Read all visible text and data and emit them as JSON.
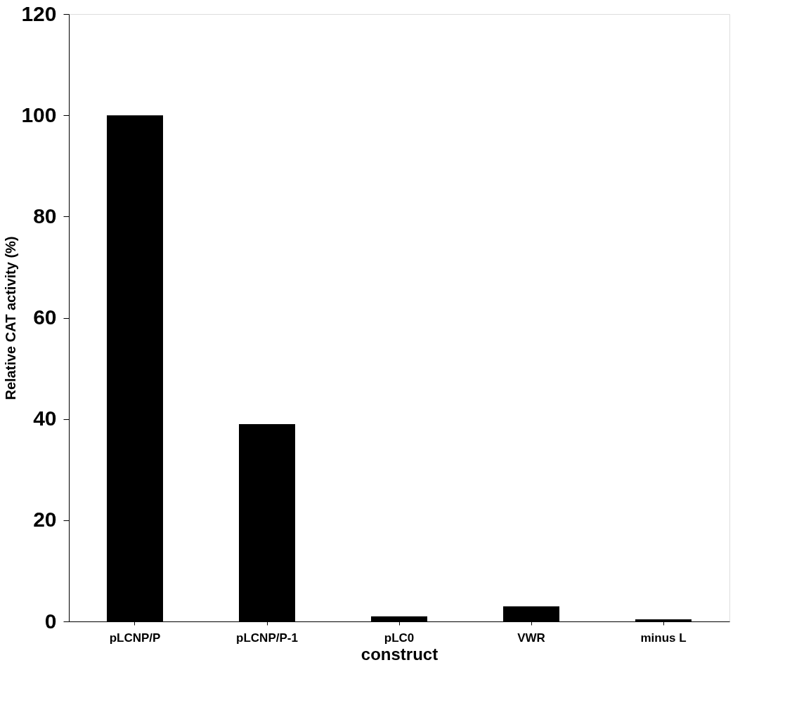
{
  "chart_data": {
    "type": "bar",
    "xlabel": "construct",
    "ylabel": "Relative CAT activity (%)",
    "categories": [
      "pLCNP/P",
      "pLCNP/P-1",
      "pLC0",
      "VWR",
      "minus L"
    ],
    "values": [
      100,
      39,
      1,
      3,
      0.4
    ],
    "color": "#000000",
    "ylim": [
      0,
      120
    ],
    "yticks": [
      0,
      20,
      40,
      60,
      80,
      100,
      120
    ],
    "grid": false
  }
}
